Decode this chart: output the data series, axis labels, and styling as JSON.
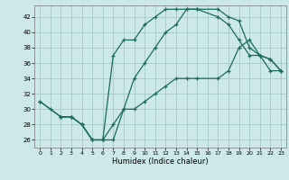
{
  "xlabel": "Humidex (Indice chaleur)",
  "xlim": [
    -0.5,
    23.5
  ],
  "ylim": [
    25.0,
    43.5
  ],
  "xticks": [
    0,
    1,
    2,
    3,
    4,
    5,
    6,
    7,
    8,
    9,
    10,
    11,
    12,
    13,
    14,
    15,
    16,
    17,
    18,
    19,
    20,
    21,
    22,
    23
  ],
  "yticks": [
    26,
    28,
    30,
    32,
    34,
    36,
    38,
    40,
    42
  ],
  "bg_color": "#cce8e8",
  "line_color": "#1a6b5a",
  "grid_color": "#aacccc",
  "line1_x": [
    0,
    1,
    2,
    3,
    4,
    5,
    6,
    7,
    8,
    9,
    10,
    11,
    12,
    13,
    14,
    15,
    17,
    18,
    19,
    20,
    21,
    22,
    23
  ],
  "line1_y": [
    31,
    30,
    29,
    29,
    28,
    26,
    26,
    37,
    39,
    39,
    41,
    42,
    43,
    43,
    43,
    43,
    43,
    42,
    41.5,
    38,
    37,
    36.5,
    35
  ],
  "line2_x": [
    0,
    2,
    3,
    4,
    5,
    6,
    7,
    8,
    9,
    10,
    11,
    12,
    13,
    14,
    15,
    17,
    18,
    19,
    20,
    21,
    22,
    23
  ],
  "line2_y": [
    31,
    29,
    29,
    28,
    26,
    26,
    28,
    30,
    30,
    31,
    32,
    33,
    34,
    34,
    34,
    34,
    35,
    38,
    39,
    37,
    35,
    35
  ],
  "line3_x": [
    2,
    3,
    4,
    5,
    6,
    7,
    8,
    9,
    10,
    11,
    12,
    13,
    14,
    15,
    17,
    18,
    19,
    20,
    21,
    22,
    23
  ],
  "line3_y": [
    29,
    29,
    28,
    26,
    26,
    26,
    30,
    34,
    36,
    38,
    40,
    41,
    43,
    43,
    42,
    41,
    39,
    37,
    37,
    36.5,
    35
  ]
}
